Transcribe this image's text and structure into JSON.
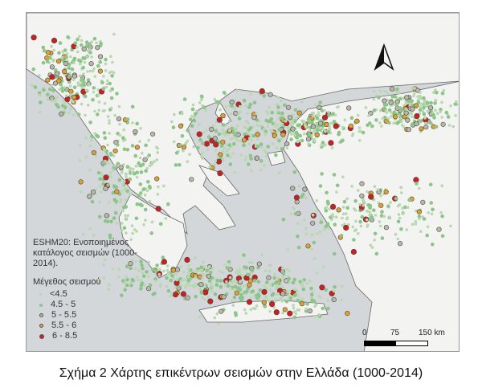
{
  "legend": {
    "source": "ESHM20: Ενοποιημένος κατάλογος σεισμών (1000-2014).",
    "title": "Μέγεθος σεισμού",
    "items": [
      {
        "label": "<4.5",
        "color": "#b9d7b0"
      },
      {
        "label": "4.5 - 5",
        "color": "#8cc48a"
      },
      {
        "label": "5 - 5.5",
        "color": "#b8b8a8"
      },
      {
        "label": "5.5 - 6",
        "color": "#e0a030"
      },
      {
        "label": "6 - 8.5",
        "color": "#cc1f1f"
      }
    ]
  },
  "scale_bar": {
    "labels": [
      "0",
      "75",
      "150 km"
    ]
  },
  "north_arrow": {
    "icon": "north-arrow-icon"
  },
  "colors": {
    "sea": "#d4d7da",
    "land": "#f3f3f1",
    "border": "#555555"
  },
  "caption": "Σχήμα 2 Χάρτης επικέντρων σεισμών στην Ελλάδα (1000-2014)"
}
